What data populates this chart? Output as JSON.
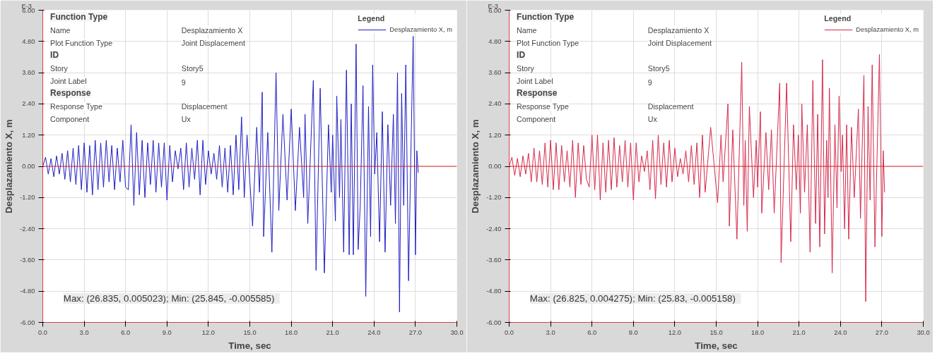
{
  "chart_data": [
    {
      "type": "line",
      "xlabel": "Time, sec",
      "ylabel": "Desplazamiento X, m",
      "legend_title": "Legend",
      "legend": "top right",
      "grid": true,
      "xlim": [
        0,
        30
      ],
      "xticks": [
        {
          "value": 0,
          "label": "0.0"
        },
        {
          "value": 3,
          "label": "3.0"
        },
        {
          "value": 6,
          "label": "6.0"
        },
        {
          "value": 9,
          "label": "9.0"
        },
        {
          "value": 12,
          "label": "12.0"
        },
        {
          "value": 15,
          "label": "15.0"
        },
        {
          "value": 18,
          "label": "18.0"
        },
        {
          "value": 21,
          "label": "21.0"
        },
        {
          "value": 24,
          "label": "24.0"
        },
        {
          "value": 27,
          "label": "27.0"
        },
        {
          "value": 30,
          "label": "30.0"
        }
      ],
      "ylim": [
        -6,
        6
      ],
      "yticks": [
        {
          "value": -6,
          "label": "-6.00"
        },
        {
          "value": -4.8,
          "label": "-4.80"
        },
        {
          "value": -3.6,
          "label": "-3.60"
        },
        {
          "value": -2.4,
          "label": "-2.40"
        },
        {
          "value": -1.2,
          "label": "-1.20"
        },
        {
          "value": 0,
          "label": "0.00"
        },
        {
          "value": 1.2,
          "label": "1.20"
        },
        {
          "value": 2.4,
          "label": "2.40"
        },
        {
          "value": 3.6,
          "label": "3.60"
        },
        {
          "value": 4.8,
          "label": "4.80"
        },
        {
          "value": 6,
          "label": "6.00"
        }
      ],
      "ref_lines": [
        {
          "axis": "y",
          "value": 0,
          "color": "#e02828"
        }
      ],
      "annotations": [
        "E-3",
        "Function Type",
        "Name",
        "Desplazamiento X",
        "Plot Function Type",
        "Joint Displacement",
        "ID",
        "Story",
        "Story5",
        "Joint Label",
        "9",
        "Response",
        "Response Type",
        "Displacement",
        "Component",
        "Ux",
        "Max: (26.835, 0.005023);   Min: (25.845, -0.005585)"
      ],
      "series": [
        {
          "name": "Desplazamiento X, m",
          "color": "#1f1fc4",
          "x": [
            0,
            0.2,
            0.4,
            0.6,
            0.8,
            1.0,
            1.2,
            1.4,
            1.6,
            1.8,
            2.0,
            2.2,
            2.4,
            2.6,
            2.8,
            3.0,
            3.2,
            3.4,
            3.6,
            3.8,
            4.0,
            4.2,
            4.4,
            4.6,
            4.8,
            5.0,
            5.2,
            5.4,
            5.6,
            5.8,
            6.0,
            6.2,
            6.4,
            6.6,
            6.8,
            7.0,
            7.2,
            7.4,
            7.6,
            7.8,
            8.0,
            8.2,
            8.4,
            8.6,
            8.8,
            9.0,
            9.2,
            9.4,
            9.6,
            9.8,
            10.0,
            10.2,
            10.4,
            10.6,
            10.8,
            11.0,
            11.2,
            11.4,
            11.6,
            11.8,
            12.0,
            12.2,
            12.4,
            12.6,
            12.8,
            13.0,
            13.2,
            13.4,
            13.6,
            13.8,
            14.0,
            14.2,
            14.4,
            14.6,
            14.8,
            15.2,
            15.5,
            15.7,
            15.9,
            16.0,
            16.3,
            16.6,
            16.9,
            17.1,
            17.4,
            17.7,
            18.0,
            18.3,
            18.6,
            18.9,
            19.0,
            19.2,
            19.6,
            19.8,
            20.1,
            20.4,
            20.7,
            20.9,
            21.0,
            21.2,
            21.3,
            21.5,
            21.6,
            21.8,
            22.0,
            22.2,
            22.35,
            22.5,
            22.7,
            22.85,
            23.0,
            23.2,
            23.4,
            23.6,
            23.75,
            23.9,
            24.05,
            24.2,
            24.4,
            24.6,
            24.8,
            25.0,
            25.2,
            25.4,
            25.55,
            25.7,
            25.845,
            26.0,
            26.15,
            26.3,
            26.5,
            26.65,
            26.835,
            27.0,
            27.1,
            27.2
          ],
          "values": [
            0,
            0.35,
            -0.3,
            0.3,
            -0.4,
            0.4,
            -0.3,
            0.5,
            -0.5,
            0.6,
            -0.6,
            0.7,
            -0.7,
            0.8,
            -0.9,
            0.9,
            -1.0,
            0.8,
            -1.1,
            1.0,
            -0.9,
            0.9,
            -0.8,
            1.0,
            -0.6,
            0.8,
            -0.9,
            0.7,
            -0.6,
            1.0,
            -0.8,
            -0.9,
            1.6,
            -1.5,
            1.3,
            -1.1,
            1.0,
            -1.2,
            0.9,
            -0.7,
            1.0,
            -1.0,
            0.9,
            -0.8,
            0.9,
            -1.3,
            0.8,
            -0.6,
            0.6,
            -0.1,
            0.7,
            -0.9,
            0.9,
            -0.8,
            0.7,
            -0.5,
            1.0,
            -1.1,
            1.0,
            -0.7,
            0.6,
            -0.3,
            0.5,
            -0.5,
            0.8,
            -0.8,
            0.7,
            -1.0,
            0.8,
            -1.1,
            1.2,
            -0.9,
            1.9,
            -1.2,
            1.2,
            -2.3,
            1.5,
            -1.0,
            2.85,
            -2.7,
            1.3,
            -3.3,
            3.6,
            -1.7,
            2.0,
            -1.3,
            2.2,
            -1.7,
            1.5,
            -1.2,
            2.0,
            -2.2,
            3.3,
            -4.0,
            3.0,
            -4.1,
            1.6,
            -1.0,
            1.2,
            -2.1,
            2.7,
            -1.2,
            1.8,
            -3.3,
            3.7,
            -3.4,
            2.4,
            -3.4,
            4.7,
            -3.2,
            -1.5,
            3.1,
            -5.0,
            2.3,
            -2.7,
            3.9,
            -0.3,
            1.3,
            -2.9,
            2.1,
            -3.3,
            1.6,
            -1.5,
            2.0,
            -2.2,
            3.6,
            -5.6,
            2.8,
            -1.5,
            3.9,
            -4.4,
            0.0,
            5.0,
            -3.4,
            0.6,
            -0.25
          ]
        }
      ]
    },
    {
      "type": "line",
      "xlabel": "Time, sec",
      "ylabel": "Desplazamiento X, m",
      "legend_title": "Legend",
      "legend": "top right",
      "grid": true,
      "xlim": [
        0,
        30
      ],
      "xticks": [
        {
          "value": 0,
          "label": "0.0"
        },
        {
          "value": 3,
          "label": "3.0"
        },
        {
          "value": 6,
          "label": "6.0"
        },
        {
          "value": 9,
          "label": "9.0"
        },
        {
          "value": 12,
          "label": "12.0"
        },
        {
          "value": 15,
          "label": "15.0"
        },
        {
          "value": 18,
          "label": "18.0"
        },
        {
          "value": 21,
          "label": "21.0"
        },
        {
          "value": 24,
          "label": "24.0"
        },
        {
          "value": 27,
          "label": "27.0"
        },
        {
          "value": 30,
          "label": "30.0"
        }
      ],
      "ylim": [
        -6,
        6
      ],
      "yticks": [
        {
          "value": -6,
          "label": "-6.00"
        },
        {
          "value": -4.8,
          "label": "-4.80"
        },
        {
          "value": -3.6,
          "label": "-3.60"
        },
        {
          "value": -2.4,
          "label": "-2.40"
        },
        {
          "value": -1.2,
          "label": "-1.20"
        },
        {
          "value": 0,
          "label": "0.00"
        },
        {
          "value": 1.2,
          "label": "1.20"
        },
        {
          "value": 2.4,
          "label": "2.40"
        },
        {
          "value": 3.6,
          "label": "3.60"
        },
        {
          "value": 4.8,
          "label": "4.80"
        },
        {
          "value": 6,
          "label": "6.00"
        }
      ],
      "ref_lines": [
        {
          "axis": "y",
          "value": 0,
          "color": "#e02828"
        }
      ],
      "annotations": [
        "E-3",
        "Function Type",
        "Name",
        "Desplazamiento X",
        "Plot Function Type",
        "Joint Displacement",
        "ID",
        "Story",
        "Story5",
        "Joint Label",
        "9",
        "Response",
        "Response Type",
        "Displacement",
        "Component",
        "Ux",
        "Max: (26.825, 0.004275);   Min: (25.83, -0.005158)"
      ],
      "series": [
        {
          "name": "Desplazamiento X, m",
          "color": "#d42a4c",
          "x": [
            0,
            0.2,
            0.4,
            0.6,
            0.8,
            1.0,
            1.2,
            1.4,
            1.6,
            1.8,
            2.0,
            2.2,
            2.4,
            2.6,
            2.8,
            3.0,
            3.2,
            3.4,
            3.6,
            3.8,
            4.0,
            4.2,
            4.4,
            4.6,
            4.8,
            5.0,
            5.2,
            5.4,
            5.6,
            5.8,
            6.0,
            6.2,
            6.4,
            6.6,
            6.8,
            7.0,
            7.2,
            7.4,
            7.6,
            7.8,
            8.0,
            8.2,
            8.4,
            8.6,
            8.8,
            9.0,
            9.2,
            9.4,
            9.6,
            9.8,
            10.0,
            10.2,
            10.4,
            10.6,
            10.8,
            11.0,
            11.2,
            11.4,
            11.6,
            11.8,
            12.0,
            12.2,
            12.4,
            12.6,
            12.8,
            13.0,
            13.2,
            13.4,
            13.6,
            13.8,
            14.0,
            14.2,
            14.6,
            15.1,
            15.35,
            15.5,
            15.85,
            15.95,
            16.2,
            16.5,
            16.85,
            17.0,
            17.1,
            17.25,
            17.4,
            17.7,
            17.9,
            18.0,
            18.2,
            18.3,
            18.6,
            18.8,
            19.0,
            19.2,
            19.6,
            19.7,
            20.1,
            20.4,
            20.6,
            20.8,
            20.95,
            21.1,
            21.2,
            21.4,
            21.6,
            21.8,
            22.0,
            22.2,
            22.35,
            22.5,
            22.7,
            22.85,
            23.0,
            23.1,
            23.2,
            23.4,
            23.6,
            23.75,
            23.9,
            24.05,
            24.15,
            24.3,
            24.45,
            24.6,
            24.8,
            25.0,
            25.3,
            25.45,
            25.7,
            25.83,
            26.0,
            26.15,
            26.3,
            26.5,
            26.825,
            27.0,
            27.1,
            27.2
          ],
          "values": [
            0,
            0.35,
            -0.35,
            0.3,
            -0.4,
            0.4,
            -0.3,
            0.5,
            -0.6,
            0.7,
            -0.6,
            0.6,
            -0.7,
            0.9,
            -0.8,
            1.0,
            -0.9,
            0.9,
            -0.9,
            0.8,
            -0.6,
            0.6,
            -0.8,
            1.0,
            -1.2,
            0.9,
            -0.7,
            0.8,
            -0.5,
            -0.8,
            1.2,
            -0.9,
            1.2,
            -1.3,
            0.9,
            -1.0,
            1.0,
            -0.9,
            1.1,
            -0.8,
            0.8,
            -0.6,
            1.0,
            -0.8,
            0.9,
            -1.3,
            0.9,
            -0.6,
            0.4,
            -0.2,
            0.6,
            -0.9,
            1.0,
            -1.25,
            1.2,
            -0.7,
            0.9,
            -0.8,
            1.0,
            -0.6,
            0.7,
            -0.4,
            0.3,
            -0.3,
            0.6,
            -0.6,
            0.8,
            -0.7,
            0.9,
            -1.2,
            1.2,
            -1.0,
            1.5,
            -1.4,
            1.2,
            -0.6,
            2.4,
            -2.3,
            1.4,
            -2.8,
            4.0,
            -1.5,
            1.0,
            -2.5,
            2.3,
            -1.2,
            1.0,
            -0.8,
            2.1,
            -1.8,
            1.3,
            -0.9,
            1.4,
            -1.8,
            3.2,
            -3.7,
            3.2,
            -2.9,
            1.6,
            -0.9,
            1.2,
            -1.8,
            2.4,
            -1.0,
            1.6,
            -3.3,
            3.3,
            -2.2,
            2.0,
            -3.1,
            4.1,
            -2.6,
            1.0,
            -1.2,
            3.0,
            -4.1,
            1.6,
            -1.6,
            2.7,
            -0.2,
            1.2,
            -2.4,
            1.6,
            -2.8,
            1.5,
            -1.2,
            2.2,
            -2.0,
            3.5,
            -5.2,
            2.3,
            -1.3,
            3.9,
            -3.1,
            4.3,
            -2.7,
            0.6,
            -1.0
          ]
        }
      ]
    }
  ]
}
